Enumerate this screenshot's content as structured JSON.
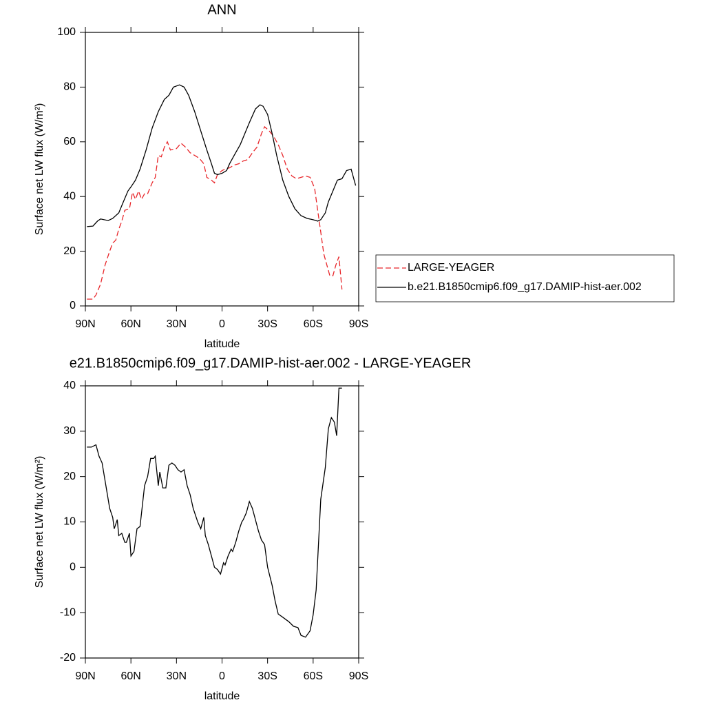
{
  "chart_data": [
    {
      "type": "line",
      "title": "ANN",
      "x_label": "latitude",
      "y_label": "Surface net LW flux (W/m²)",
      "xlim": [
        90,
        -90
      ],
      "xticks": [
        {
          "value": 90,
          "label": "90N"
        },
        {
          "value": 60,
          "label": "60N"
        },
        {
          "value": 30,
          "label": "30N"
        },
        0,
        {
          "value": -30,
          "label": "30S"
        },
        {
          "value": -60,
          "label": "60S"
        },
        {
          "value": -90,
          "label": "90S"
        }
      ],
      "ylim": [
        0,
        100
      ],
      "yticks": [
        0,
        20,
        40,
        60,
        80,
        100
      ],
      "legend": "right",
      "series": [
        {
          "name": "LARGE-YEAGER",
          "color": "#e8262a",
          "dash": true,
          "x": [
            89,
            85,
            83,
            80,
            77,
            74,
            72,
            70,
            68,
            66,
            64,
            61,
            59,
            57,
            55,
            53,
            51,
            49,
            46,
            44,
            42,
            40,
            38,
            36,
            34,
            30,
            27,
            24,
            21,
            18,
            15,
            12,
            10,
            7,
            5,
            3,
            0,
            -2,
            -5,
            -8,
            -11,
            -14,
            -17,
            -20,
            -23,
            -26,
            -28,
            -31,
            -34,
            -37,
            -40,
            -43,
            -46,
            -49,
            -52,
            -55,
            -58,
            -61,
            -63,
            -65,
            -67,
            -69,
            -71,
            -73,
            -75,
            -77,
            -79
          ],
          "values": [
            2.5,
            2.5,
            4,
            8,
            15,
            20,
            23,
            24,
            28,
            31,
            35,
            35.5,
            41.5,
            39,
            42,
            39,
            41,
            41,
            45,
            47,
            55,
            54.5,
            58,
            60,
            57,
            57.5,
            59.5,
            58,
            56,
            55,
            54,
            52,
            47,
            46,
            45,
            48,
            49.5,
            50,
            50.5,
            51.5,
            52,
            53,
            53.5,
            56,
            58,
            63,
            65.5,
            64,
            62,
            59,
            55,
            50,
            47.5,
            46.5,
            47,
            47.5,
            47,
            43,
            35,
            27,
            19,
            15,
            11,
            11,
            15,
            18,
            6
          ]
        },
        {
          "name": "b.e21.B1850cmip6.f09_g17.DAMIP-hist-aer.002",
          "color": "#000000",
          "dash": false,
          "x": [
            89,
            85,
            82,
            80,
            75,
            72,
            68,
            65,
            62,
            60,
            57,
            54,
            50,
            46,
            42,
            38,
            35,
            32,
            28,
            25,
            22,
            18,
            14,
            10,
            7,
            5,
            3,
            0,
            -3,
            -5,
            -8,
            -12,
            -15,
            -18,
            -22,
            -25,
            -27,
            -30,
            -33,
            -36,
            -40,
            -44,
            -48,
            -52,
            -56,
            -60,
            -63,
            -65,
            -68,
            -70,
            -73,
            -76,
            -79,
            -82,
            -85,
            -88
          ],
          "values": [
            29,
            29.2,
            31,
            31.8,
            31.2,
            32,
            34,
            38,
            42,
            43.5,
            46,
            50,
            57,
            65,
            71,
            75.5,
            77,
            80,
            80.8,
            80,
            77,
            71,
            64,
            57,
            52,
            48.5,
            48,
            48.5,
            49.5,
            52,
            55,
            59,
            63,
            67,
            72,
            73.5,
            73,
            70,
            63,
            55,
            46,
            40,
            35.5,
            33,
            32,
            31.5,
            31,
            31.5,
            34,
            38,
            42,
            46,
            46.5,
            49.5,
            50,
            44
          ]
        }
      ]
    },
    {
      "type": "line",
      "title": "e21.B1850cmip6.f09_g17.DAMIP-hist-aer.002 - LARGE-YEAGER",
      "x_label": "latitude",
      "y_label": "Surface net LW flux (W/m²)",
      "xlim": [
        90,
        -90
      ],
      "xticks": [
        {
          "value": 90,
          "label": "90N"
        },
        {
          "value": 60,
          "label": "60N"
        },
        {
          "value": 30,
          "label": "30N"
        },
        0,
        {
          "value": -30,
          "label": "30S"
        },
        {
          "value": -60,
          "label": "60S"
        },
        {
          "value": -90,
          "label": "90S"
        }
      ],
      "ylim": [
        -20,
        40
      ],
      "yticks": [
        -20,
        -10,
        0,
        10,
        20,
        30,
        40
      ],
      "series": [
        {
          "color": "#000000",
          "dash": false,
          "x": [
            89,
            86,
            83,
            81,
            79,
            76,
            74,
            72,
            71,
            69,
            68,
            66,
            64,
            63,
            61,
            60,
            58,
            56,
            54,
            53,
            51,
            49,
            47,
            45,
            44,
            42,
            41,
            39,
            37,
            35,
            33,
            31,
            29,
            27,
            25,
            23,
            21,
            19,
            16,
            14,
            12,
            11,
            9,
            7,
            5,
            3,
            1,
            -1,
            -2,
            -4,
            -6,
            -7,
            -9,
            -11,
            -13,
            -14,
            -16,
            -18,
            -20,
            -24,
            -26,
            -28,
            -30,
            -33,
            -35,
            -37,
            -40,
            -44,
            -47,
            -50,
            -52,
            -55,
            -58,
            -60,
            -62,
            -65,
            -68,
            -70,
            -72,
            -74,
            -75.5,
            -77,
            -79
          ],
          "values": [
            26.5,
            26.5,
            27,
            24.5,
            23,
            17,
            13,
            11,
            8.5,
            10.5,
            7,
            7.5,
            5.5,
            5.5,
            7.5,
            2.5,
            3.5,
            8.5,
            9,
            12,
            18,
            20,
            24,
            24,
            24.5,
            18,
            21,
            17.5,
            17.5,
            22.5,
            23,
            22.5,
            21.5,
            21,
            21.5,
            18,
            16,
            13,
            10,
            8.5,
            11,
            7,
            5,
            2.5,
            0,
            -0.5,
            -1.5,
            1,
            0.5,
            2.5,
            4,
            3.5,
            5.5,
            8,
            10,
            10.5,
            12,
            14.5,
            13,
            8,
            6,
            5,
            0,
            -4,
            -7.5,
            -10.3,
            -11,
            -12,
            -13,
            -13.3,
            -15,
            -15.4,
            -14,
            -10.5,
            -5,
            15,
            22,
            30.5,
            33,
            32,
            29,
            39.5,
            39.5
          ]
        }
      ]
    }
  ]
}
